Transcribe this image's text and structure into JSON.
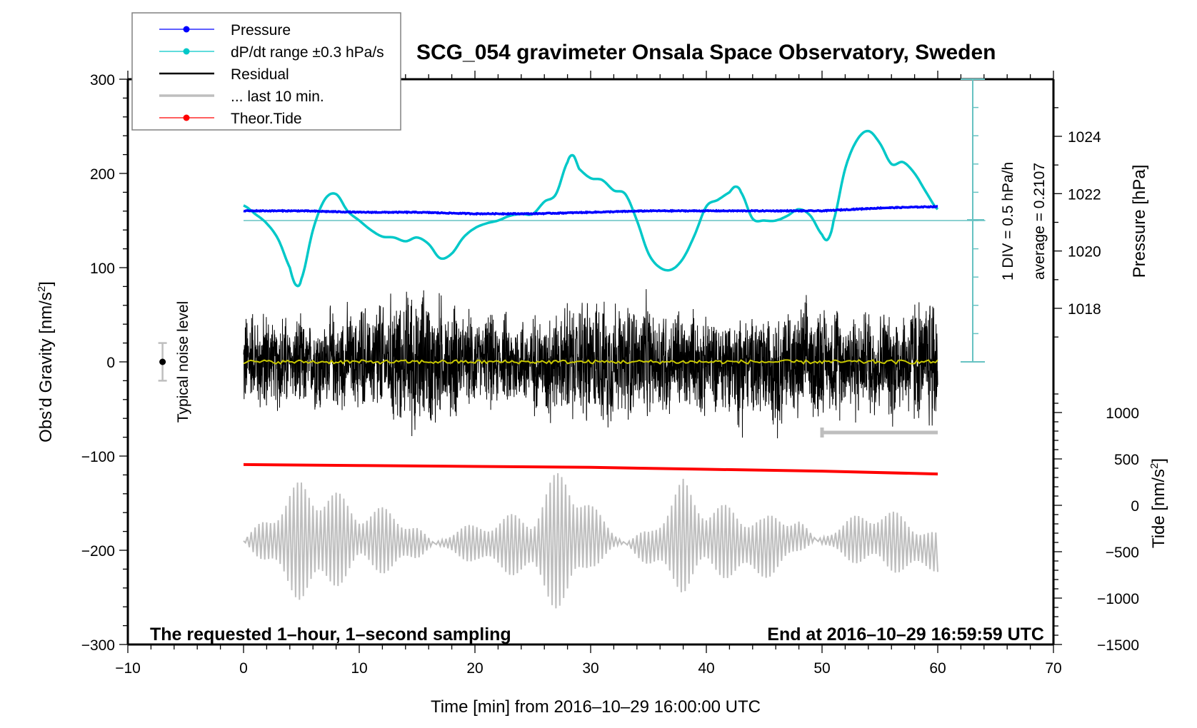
{
  "chart_data": {
    "type": "line",
    "title": "SCG_054 gravimeter Onsala Space Observatory, Sweden",
    "xlabel": "Time [min] from 2016–10–29 16:00:00 UTC",
    "ylabel_left": "Obs’d Gravity [nm/s²]",
    "ylabel_right_pressure": "Pressure [hPa]",
    "ylabel_right_tide": "Tide [nm/s²]",
    "xlim": [
      -10,
      70
    ],
    "ylim_left": [
      -300,
      300
    ],
    "x_ticks": [
      -10,
      0,
      10,
      20,
      30,
      40,
      50,
      60,
      70
    ],
    "x_tick_labels": [
      "−10",
      "0",
      "10",
      "20",
      "30",
      "40",
      "50",
      "60",
      "70"
    ],
    "y_left_ticks": [
      -300,
      -200,
      -100,
      0,
      100,
      200,
      300
    ],
    "y_left_tick_labels": [
      "−300",
      "−200",
      "−100",
      "0",
      "100",
      "200",
      "300"
    ],
    "pressure_axis": {
      "ticks": [
        1018,
        1020,
        1022,
        1024
      ],
      "tick_labels": [
        "1018",
        "1020",
        "1022",
        "1024"
      ],
      "range_hpa": [
        1017,
        1025
      ]
    },
    "tide_axis": {
      "ticks": [
        -1500,
        -1000,
        -500,
        0,
        500,
        1000
      ],
      "tick_labels": [
        "−1500",
        "−1000",
        "−500",
        "0",
        "500",
        "1000"
      ],
      "range": [
        -1500,
        1000
      ]
    },
    "grid": false,
    "legend": {
      "placement": "top-left",
      "entries": [
        {
          "label": "Pressure",
          "color": "#0000ff",
          "marker": "dot"
        },
        {
          "label": "dP/dt range ±0.3 hPa/s",
          "color": "#00c8c8",
          "marker": "dot"
        },
        {
          "label": "Residual",
          "color": "#000000",
          "marker": "none"
        },
        {
          "label": "... last 10 min.",
          "color": "#bebebe",
          "marker": "none"
        },
        {
          "label": "Theor.Tide",
          "color": "#ff0000",
          "marker": "dot"
        }
      ]
    },
    "annotations": {
      "bottom_left": "The requested 1–hour, 1–second sampling",
      "bottom_right": "End at 2016–10–29 16:59:59 UTC",
      "noise_label": "Typical noise level",
      "scale_div": "1 DIV = 0.5 hPa/h",
      "scale_avg": "average = 0.2107"
    },
    "noise_level": {
      "x": -7,
      "center": 0,
      "halfwidth": 20
    },
    "last10_marker": {
      "x_start": 50,
      "x_end": 60,
      "y": -75
    },
    "series": [
      {
        "name": "Pressure",
        "axis": "pressure",
        "color": "#0000ff",
        "x": [
          0,
          5,
          10,
          15,
          20,
          25,
          30,
          35,
          40,
          45,
          50,
          55,
          60
        ],
        "values": [
          1021.4,
          1021.4,
          1021.35,
          1021.35,
          1021.3,
          1021.3,
          1021.35,
          1021.4,
          1021.4,
          1021.4,
          1021.4,
          1021.5,
          1021.55
        ]
      },
      {
        "name": "dP/dt",
        "axis": "left",
        "color": "#00c8c8",
        "x": [
          0,
          1,
          2,
          3,
          4,
          4.5,
          5,
          6,
          7,
          8,
          9,
          10,
          11,
          12,
          13,
          14,
          15,
          16,
          17,
          18,
          19,
          20,
          21,
          22,
          23,
          24,
          25,
          26,
          27,
          28,
          28.5,
          29,
          30,
          31,
          32,
          33,
          34,
          35,
          36,
          37,
          38,
          39,
          40,
          41,
          42,
          42.5,
          43,
          44,
          45,
          46,
          47,
          48,
          49,
          50,
          50.5,
          51,
          52,
          53,
          54,
          55,
          56,
          57,
          58,
          59,
          60
        ],
        "values": [
          166,
          157,
          147,
          130,
          100,
          82,
          88,
          140,
          172,
          178,
          160,
          150,
          140,
          133,
          132,
          128,
          132,
          125,
          110,
          115,
          132,
          142,
          147,
          150,
          155,
          157,
          157,
          170,
          178,
          212,
          219,
          205,
          195,
          193,
          182,
          178,
          150,
          115,
          100,
          98,
          110,
          135,
          165,
          172,
          180,
          186,
          180,
          152,
          150,
          150,
          155,
          162,
          155,
          135,
          130,
          150,
          205,
          235,
          245,
          232,
          210,
          212,
          200,
          180,
          162
        ]
      },
      {
        "name": "dP/dt average",
        "axis": "left",
        "color": "#66c2c2",
        "x": [
          0,
          63
        ],
        "values": [
          150,
          150
        ]
      },
      {
        "name": "Theor.Tide",
        "axis": "left",
        "color": "#ff0000",
        "x": [
          0,
          10,
          20,
          30,
          40,
          50,
          60
        ],
        "values": [
          -109,
          -110,
          -111,
          -112,
          -114,
          -116,
          -119
        ]
      },
      {
        "name": "Residual",
        "axis": "left",
        "color": "#000000",
        "center": 0,
        "x": [
          0,
          5,
          10,
          15,
          20,
          25,
          30,
          35,
          40,
          45,
          50,
          55,
          60
        ],
        "envelope_upper": [
          78,
          55,
          75,
          100,
          65,
          60,
          90,
          80,
          60,
          70,
          80,
          65,
          100
        ],
        "envelope_lower": [
          -65,
          -70,
          -60,
          -100,
          -55,
          -70,
          -90,
          -75,
          -70,
          -95,
          -70,
          -75,
          -90
        ]
      },
      {
        "name": "Residual smoothed",
        "axis": "left",
        "color": "#c8c800",
        "x": [
          0,
          60
        ],
        "values": [
          0,
          0
        ]
      },
      {
        "name": "last 10 min tide-like signal",
        "axis": "left",
        "color": "#bebebe",
        "center": -190,
        "x": [
          0,
          5,
          10,
          15,
          20,
          25,
          28,
          30,
          35,
          38,
          40,
          45,
          48,
          50,
          55,
          60
        ],
        "envelope_upper": [
          -115,
          -110,
          -155,
          -125,
          -160,
          -160,
          -85,
          -120,
          -140,
          -110,
          -150,
          -155,
          -110,
          -140,
          -150,
          -180
        ],
        "envelope_lower": [
          -265,
          -270,
          -220,
          -260,
          -225,
          -230,
          -290,
          -250,
          -255,
          -260,
          -225,
          -240,
          -260,
          -240,
          -225,
          -225
        ]
      }
    ]
  }
}
